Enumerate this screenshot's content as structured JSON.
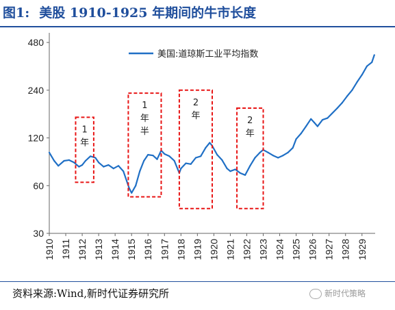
{
  "header": {
    "fig_label": "图1:",
    "title_text": "美股 1910-1925 年期间的牛市长度"
  },
  "footer": {
    "source": "资料来源:Wind,新时代证券研究所",
    "watermark": "新时代策略"
  },
  "colors": {
    "title": "#1f4e9c",
    "series": "#1f6fc5",
    "highlight_box": "#e81414"
  },
  "chart_data": {
    "type": "line",
    "title": "",
    "xlabel": "",
    "ylabel": "",
    "y_scale": "log",
    "ylim": [
      30,
      520
    ],
    "xlim": [
      1910,
      1929.8
    ],
    "y_ticks": [
      "30",
      "60",
      "120",
      "240",
      "480"
    ],
    "x_ticks": [
      "1910",
      "1911",
      "1912",
      "1913",
      "1914",
      "1915",
      "1916",
      "1917",
      "1918",
      "1919",
      "1920",
      "1921",
      "1922",
      "1923",
      "1924",
      "1925",
      "1926",
      "1927",
      "1928",
      "1929"
    ],
    "grid": false,
    "legend": {
      "position": "top-center",
      "entries": [
        "美国:道琼斯工业平均指数"
      ]
    },
    "series": [
      {
        "name": "美国:道琼斯工业平均指数",
        "x": [
          1910.0,
          1910.3,
          1910.55,
          1910.9,
          1911.2,
          1911.5,
          1911.8,
          1912.0,
          1912.2,
          1912.5,
          1912.8,
          1913.0,
          1913.3,
          1913.6,
          1913.9,
          1914.2,
          1914.5,
          1914.85,
          1915.0,
          1915.25,
          1915.5,
          1915.75,
          1916.0,
          1916.3,
          1916.55,
          1916.8,
          1917.0,
          1917.3,
          1917.6,
          1917.9,
          1918.0,
          1918.3,
          1918.6,
          1918.9,
          1919.2,
          1919.5,
          1919.75,
          1919.9,
          1920.2,
          1920.5,
          1920.8,
          1921.0,
          1921.3,
          1921.6,
          1921.9,
          1922.2,
          1922.5,
          1922.8,
          1923.0,
          1923.3,
          1923.6,
          1923.9,
          1924.2,
          1924.5,
          1924.8,
          1925.0,
          1925.3,
          1925.6,
          1925.9,
          1926.1,
          1926.3,
          1926.6,
          1926.9,
          1927.2,
          1927.5,
          1927.8,
          1928.1,
          1928.4,
          1928.7,
          1929.0,
          1929.3,
          1929.6,
          1929.75
        ],
        "values": [
          97,
          86,
          80,
          86,
          87,
          84,
          79,
          81,
          86,
          92,
          90,
          84,
          79,
          81,
          77,
          80,
          74,
          58,
          54,
          60,
          74,
          86,
          94,
          93,
          88,
          100,
          95,
          92,
          86,
          72,
          77,
          83,
          82,
          90,
          92,
          104,
          112,
          107,
          94,
          87,
          77,
          74,
          76,
          72,
          70,
          80,
          90,
          97,
          101,
          97,
          93,
          90,
          93,
          97,
          104,
          118,
          128,
          142,
          158,
          150,
          142,
          156,
          160,
          172,
          185,
          200,
          220,
          240,
          270,
          300,
          340,
          360,
          400
        ]
      }
    ],
    "annotations": [
      {
        "label": "1年",
        "x_start": 1911.6,
        "x_end": 1912.7,
        "y_low": 63,
        "y_high": 162
      },
      {
        "label": "1年半",
        "x_start": 1914.8,
        "x_end": 1916.8,
        "y_low": 51,
        "y_high": 230
      },
      {
        "label": "2年",
        "x_start": 1917.9,
        "x_end": 1919.9,
        "y_low": 43,
        "y_high": 240
      },
      {
        "label": "2年",
        "x_start": 1921.4,
        "x_end": 1923.0,
        "y_low": 43,
        "y_high": 185
      }
    ]
  }
}
